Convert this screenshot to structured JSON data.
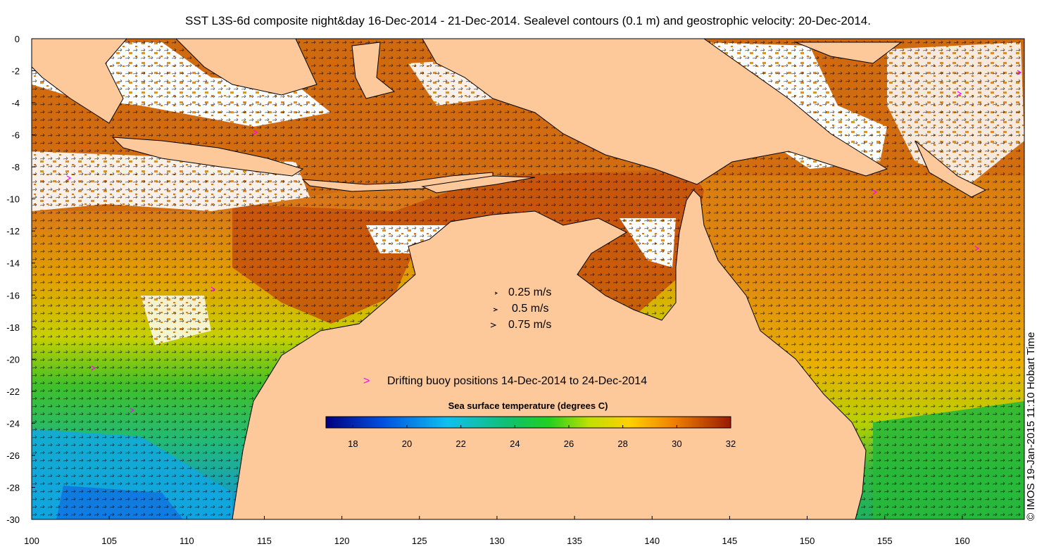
{
  "title": "SST L3S-6d composite night&day 16-Dec-2014 - 21-Dec-2014. Sealevel contours (0.1 m) and geostrophic velocity: 20-Dec-2014.",
  "credit": "© IMOS 19-Jan-2015 11:10 Hobart Time",
  "axes": {
    "x_ticks": [
      "100",
      "105",
      "110",
      "115",
      "120",
      "125",
      "130",
      "135",
      "140",
      "145",
      "150",
      "155",
      "160"
    ],
    "y_ticks": [
      "0",
      "-2",
      "-4",
      "-6",
      "-8",
      "-10",
      "-12",
      "-14",
      "-16",
      "-18",
      "-20",
      "-22",
      "-24",
      "-26",
      "-28",
      "-30"
    ]
  },
  "velocity_legend": [
    {
      "label": "0.25 m/s"
    },
    {
      "label": "0.5 m/s"
    },
    {
      "label": "0.75 m/s"
    }
  ],
  "buoy_legend": {
    "symbol": ">",
    "label": "Drifting buoy positions 14-Dec-2014 to 24-Dec-2014",
    "color": "#ff00ff"
  },
  "colorbar": {
    "title": "Sea surface temperature (degrees C)",
    "ticks": [
      "18",
      "20",
      "22",
      "24",
      "26",
      "28",
      "30",
      "32"
    ],
    "min": 17,
    "max": 32
  },
  "colors": {
    "land": "#fdc99b",
    "cloud": "#ffffff",
    "warm": "#e07b10",
    "hot": "#b8460c",
    "mid": "#d8b400",
    "green": "#2cb82c",
    "cool": "#10a8d8",
    "buoy": "#ff00ff"
  }
}
